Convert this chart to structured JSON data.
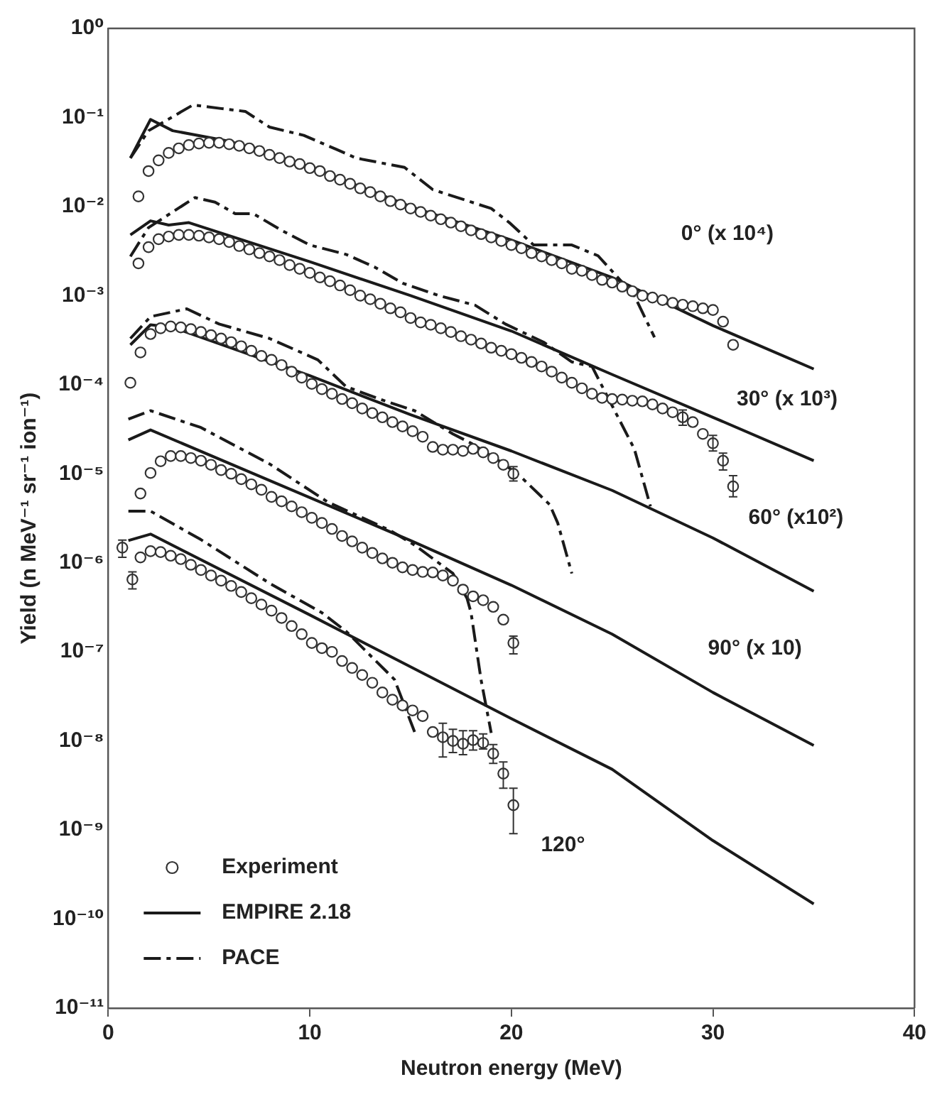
{
  "chart_data": {
    "type": "line",
    "xlabel": "Neutron energy (MeV)",
    "ylabel": "Yield (n MeV⁻¹ sr⁻¹ ion⁻¹)",
    "log": "y",
    "grid": false,
    "legend": "bottom left",
    "xlim": [
      0,
      40
    ],
    "xticks": [
      0,
      10,
      20,
      30,
      40
    ],
    "ylim": [
      1e-11,
      1
    ],
    "yticks": [
      {
        "value": 1,
        "label": "10⁰"
      },
      {
        "value": 0.1,
        "label": "10⁻¹"
      },
      {
        "value": 0.01,
        "label": "10⁻²"
      },
      {
        "value": 0.001,
        "label": "10⁻³"
      },
      {
        "value": 0.0001,
        "label": "10⁻⁴"
      },
      {
        "value": 1e-05,
        "label": "10⁻⁵"
      },
      {
        "value": 1e-06,
        "label": "10⁻⁶"
      },
      {
        "value": 1e-07,
        "label": "10⁻⁷"
      },
      {
        "value": 1e-08,
        "label": "10⁻⁸"
      },
      {
        "value": 1e-09,
        "label": "10⁻⁹"
      },
      {
        "value": 1e-10,
        "label": "10⁻¹⁰"
      },
      {
        "value": 1e-11,
        "label": "10⁻¹¹"
      }
    ],
    "annotations": [
      "0° (x 10⁴)",
      "30° (x 10³)",
      "60° (x10²)",
      "90° (x 10)",
      "120°"
    ],
    "series": [
      {
        "name": "Experiment",
        "type": "scatter",
        "color": "#333333",
        "marker": "circle",
        "x": [
          1.5,
          2,
          2.5,
          3,
          3.5,
          4,
          4.5,
          5,
          5.5,
          6,
          6.5,
          7,
          7.5,
          8,
          8.5,
          9,
          9.5,
          10,
          10.5,
          11,
          11.5,
          12,
          12.5,
          13,
          13.5,
          14,
          14.5,
          15,
          15.5,
          16,
          16.5,
          17,
          17.5,
          18,
          18.5,
          19,
          19.5,
          20,
          20.5,
          21,
          21.5,
          22,
          22.5,
          23,
          23.5,
          24,
          24.5,
          25,
          25.5,
          26,
          26.5,
          27,
          27.5,
          28,
          28.5,
          29,
          29.5,
          30,
          30.5,
          31
        ],
        "values": [
          0.013,
          0.025,
          0.033,
          0.04,
          0.045,
          0.049,
          0.051,
          0.052,
          0.052,
          0.05,
          0.048,
          0.045,
          0.042,
          0.038,
          0.035,
          0.032,
          0.03,
          0.027,
          0.025,
          0.022,
          0.02,
          0.018,
          0.016,
          0.0145,
          0.013,
          0.0115,
          0.0105,
          0.0095,
          0.0087,
          0.0079,
          0.0072,
          0.0066,
          0.006,
          0.0054,
          0.0049,
          0.0045,
          0.0041,
          0.0037,
          0.0034,
          0.003,
          0.00275,
          0.0025,
          0.0023,
          0.002,
          0.0019,
          0.0017,
          0.0015,
          0.0014,
          0.00126,
          0.00112,
          0.001,
          0.00095,
          0.00089,
          0.00083,
          0.00079,
          0.00076,
          0.00072,
          0.00069,
          0.00051,
          0.00028
        ]
      },
      {
        "name": "EMPIRE 2.18",
        "type": "line",
        "color": "#1a1a1a",
        "marker": "none",
        "line_style": "solid",
        "x": [
          1.1,
          2.1,
          3.2,
          6,
          10,
          15,
          20,
          25,
          30,
          35
        ],
        "values": [
          0.035,
          0.095,
          0.071,
          0.054,
          0.028,
          0.01,
          0.0042,
          0.0016,
          0.00046,
          0.00015
        ]
      },
      {
        "name": "PACE",
        "type": "line",
        "color": "#1a1a1a",
        "marker": "none",
        "line_style": "dashed",
        "x": [
          1.1,
          2.0,
          4.2,
          5.6,
          6.8,
          8.0,
          9.7,
          11.3,
          12.3,
          14.7,
          16.1,
          19.0,
          19.9,
          21.1,
          23.0,
          24.3,
          26.1,
          27.1
        ],
        "values": [
          0.035,
          0.071,
          0.138,
          0.126,
          0.117,
          0.078,
          0.063,
          0.044,
          0.035,
          0.0275,
          0.0155,
          0.0095,
          0.0066,
          0.0037,
          0.0037,
          0.0028,
          0.001,
          0.00034
        ]
      },
      {
        "type": "scatter",
        "color": "#333333",
        "marker": "circle",
        "x": [
          1.5,
          2,
          2.5,
          3,
          3.5,
          4,
          4.5,
          5,
          5.5,
          6,
          6.5,
          7,
          7.5,
          8,
          8.5,
          9,
          9.5,
          10,
          10.5,
          11,
          11.5,
          12,
          12.5,
          13,
          13.5,
          14,
          14.5,
          15,
          15.5,
          16,
          16.5,
          17,
          17.5,
          18,
          18.5,
          19,
          19.5,
          20,
          20.5,
          21,
          21.5,
          22,
          22.5,
          23,
          23.5,
          24,
          24.5,
          25,
          25.5,
          26,
          26.5,
          27,
          27.5,
          28,
          28.5,
          29,
          29.5,
          30,
          30.5,
          31
        ],
        "values": [
          0.0023,
          0.0035,
          0.0043,
          0.0046,
          0.0048,
          0.0048,
          0.0047,
          0.0045,
          0.0043,
          0.004,
          0.0036,
          0.0033,
          0.003,
          0.00275,
          0.0025,
          0.0022,
          0.002,
          0.0018,
          0.0016,
          0.00145,
          0.0013,
          0.00115,
          0.001,
          0.00091,
          0.00081,
          0.00072,
          0.00065,
          0.00056,
          0.0005,
          0.00047,
          0.00043,
          0.00039,
          0.00035,
          0.00032,
          0.00029,
          0.00026,
          0.00024,
          0.00022,
          0.0002,
          0.00018,
          0.00016,
          0.00014,
          0.00012,
          0.000105,
          9.1e-05,
          7.9e-05,
          7.1e-05,
          6.9e-05,
          6.8e-05,
          6.6e-05,
          6.5e-05,
          6e-05,
          5.4e-05,
          4.9e-05,
          4.3e-05,
          3.8e-05,
          2.8e-05,
          2.2e-05,
          1.4e-05,
          7.2e-06
        ],
        "errors": [
          null,
          null,
          null,
          null,
          null,
          null,
          null,
          null,
          null,
          null,
          null,
          null,
          null,
          null,
          null,
          null,
          null,
          null,
          null,
          null,
          null,
          null,
          null,
          null,
          null,
          null,
          null,
          null,
          null,
          null,
          null,
          null,
          null,
          null,
          null,
          null,
          null,
          null,
          null,
          null,
          null,
          null,
          null,
          null,
          null,
          null,
          null,
          null,
          null,
          null,
          null,
          null,
          null,
          null,
          [
            3.5e-05,
            5.2e-05
          ],
          null,
          null,
          [
            1.8e-05,
            2.7e-05
          ],
          [
            1.1e-05,
            1.7e-05
          ],
          [
            5.5e-06,
            9.5e-06
          ]
        ]
      },
      {
        "type": "line",
        "color": "#1a1a1a",
        "marker": "none",
        "line_style": "solid",
        "x": [
          1.1,
          2.1,
          3.0,
          4.0,
          10,
          15,
          20,
          25,
          30,
          35
        ],
        "values": [
          0.0048,
          0.0069,
          0.0062,
          0.0066,
          0.0024,
          0.001,
          0.0004,
          0.00013,
          4.3e-05,
          1.4e-05
        ]
      },
      {
        "type": "line",
        "color": "#1a1a1a",
        "marker": "none",
        "line_style": "dashed",
        "x": [
          1.1,
          2.0,
          4.3,
          5.3,
          6.3,
          7.2,
          8.6,
          10.0,
          11.8,
          13.2,
          14.6,
          16.4,
          18.2,
          19.7,
          21.6,
          23.0,
          24.0,
          25.0,
          26.1,
          26.9
        ],
        "values": [
          0.00275,
          0.0058,
          0.0126,
          0.0112,
          0.0083,
          0.0083,
          0.0054,
          0.0037,
          0.0029,
          0.0021,
          0.00138,
          0.001,
          0.00078,
          0.00048,
          0.0003,
          0.00018,
          0.00016,
          5.8e-05,
          1.9e-05,
          4.3e-06
        ]
      },
      {
        "type": "scatter",
        "color": "#333333",
        "marker": "circle",
        "x": [
          1.1,
          1.6,
          2.1,
          2.6,
          3.1,
          3.6,
          4.1,
          4.6,
          5.1,
          5.6,
          6.1,
          6.6,
          7.1,
          7.6,
          8.1,
          8.6,
          9.1,
          9.6,
          10.1,
          10.6,
          11.1,
          11.6,
          12.1,
          12.6,
          13.1,
          13.6,
          14.1,
          14.6,
          15.1,
          15.6,
          16.1,
          16.6,
          17.1,
          17.6,
          18.1,
          18.6,
          19.1,
          19.6,
          20.1
        ],
        "values": [
          0.000105,
          0.00023,
          0.00037,
          0.00043,
          0.00045,
          0.00044,
          0.00042,
          0.00039,
          0.00036,
          0.00033,
          0.0003,
          0.00027,
          0.00024,
          0.00021,
          0.00019,
          0.000166,
          0.00014,
          0.00012,
          0.000102,
          8.9e-05,
          7.9e-05,
          6.9e-05,
          6.2e-05,
          5.4e-05,
          4.8e-05,
          4.3e-05,
          3.8e-05,
          3.4e-05,
          3e-05,
          2.6e-05,
          2e-05,
          1.86e-05,
          1.86e-05,
          1.8e-05,
          1.9e-05,
          1.74e-05,
          1.5e-05,
          1.26e-05,
          1e-05
        ],
        "errors": [
          null,
          null,
          null,
          null,
          null,
          null,
          null,
          null,
          null,
          null,
          null,
          null,
          null,
          null,
          null,
          null,
          null,
          null,
          null,
          null,
          null,
          null,
          null,
          null,
          null,
          null,
          null,
          null,
          null,
          null,
          null,
          null,
          null,
          null,
          null,
          null,
          null,
          null,
          [
            8.3e-06,
            1.2e-05
          ]
        ]
      },
      {
        "type": "line",
        "color": "#1a1a1a",
        "marker": "none",
        "line_style": "solid",
        "x": [
          1.1,
          2.1,
          3.2,
          10,
          15,
          20,
          25,
          30,
          35
        ],
        "values": [
          0.00028,
          0.00047,
          0.00044,
          0.000126,
          4.6e-05,
          1.8e-05,
          6.5e-06,
          1.9e-06,
          4.8e-07
        ]
      },
      {
        "type": "line",
        "color": "#1a1a1a",
        "marker": "none",
        "line_style": "dashed",
        "x": [
          1.1,
          2.1,
          3.9,
          5.5,
          8.0,
          10.4,
          11.8,
          13.7,
          15.2,
          17.1,
          18.0,
          19.6,
          20.5,
          21.9,
          22.3,
          23.0
        ],
        "values": [
          0.00033,
          0.00058,
          0.00071,
          0.00048,
          0.00033,
          0.00019,
          9.5e-05,
          6.6e-05,
          5.1e-05,
          2.8e-05,
          2.2e-05,
          1.3e-05,
          9.1e-06,
          4.5e-06,
          2.8e-06,
          7.6e-07
        ]
      },
      {
        "type": "scatter",
        "color": "#333333",
        "marker": "circle",
        "x": [
          1.6,
          2.1,
          2.6,
          3.1,
          3.6,
          4.1,
          4.6,
          5.1,
          5.6,
          6.1,
          6.6,
          7.1,
          7.6,
          8.1,
          8.6,
          9.1,
          9.6,
          10.1,
          10.6,
          11.1,
          11.6,
          12.1,
          12.6,
          13.1,
          13.6,
          14.1,
          14.6,
          15.1,
          15.6,
          16.1,
          16.6,
          17.1,
          17.6,
          18.1,
          18.6,
          19.1,
          19.6,
          20.1
        ],
        "values": [
          6e-06,
          1.02e-05,
          1.38e-05,
          1.58e-05,
          1.58e-05,
          1.5e-05,
          1.4e-05,
          1.26e-05,
          1.1e-05,
          1e-05,
          8.7e-06,
          7.6e-06,
          6.6e-06,
          5.5e-06,
          4.9e-06,
          4.3e-06,
          3.7e-06,
          3.2e-06,
          2.8e-06,
          2.4e-06,
          2e-06,
          1.74e-06,
          1.48e-06,
          1.29e-06,
          1.12e-06,
          1e-06,
          8.9e-07,
          8.3e-07,
          7.9e-07,
          7.8e-07,
          7.2e-07,
          6.3e-07,
          5e-07,
          4.2e-07,
          3.8e-07,
          3.2e-07,
          2.3e-07,
          1.26e-07
        ],
        "errors": [
          null,
          null,
          null,
          null,
          null,
          null,
          null,
          null,
          null,
          null,
          null,
          null,
          null,
          null,
          null,
          null,
          null,
          null,
          null,
          null,
          null,
          null,
          null,
          null,
          null,
          null,
          null,
          null,
          null,
          null,
          null,
          null,
          null,
          null,
          null,
          null,
          null,
          [
            9.5e-08,
            1.5e-07
          ]
        ]
      },
      {
        "type": "line",
        "color": "#1a1a1a",
        "marker": "none",
        "line_style": "solid",
        "x": [
          1.0,
          2.1,
          10,
          15,
          20,
          25,
          30,
          35
        ],
        "values": [
          2.4e-05,
          3.1e-05,
          5.4e-06,
          1.78e-06,
          5.6e-07,
          1.58e-07,
          3.5e-08,
          8.9e-09
        ]
      },
      {
        "type": "line",
        "color": "#1a1a1a",
        "marker": "none",
        "line_style": "dashed",
        "x": [
          1.0,
          2.1,
          4.6,
          8.0,
          10.9,
          14.0,
          15.2,
          17.1,
          17.8,
          18.0,
          18.5,
          19.0
        ],
        "values": [
          4.1e-05,
          5.1e-05,
          3.3e-05,
          1.29e-05,
          4.8e-06,
          2.3e-06,
          1.58e-06,
          7.6e-07,
          4e-07,
          2.75e-07,
          4.8e-08,
          1.23e-08
        ]
      },
      {
        "type": "scatter",
        "color": "#333333",
        "marker": "circle",
        "x": [
          0.7,
          1.2,
          1.6,
          2.1,
          2.6,
          3.1,
          3.6,
          4.1,
          4.6,
          5.1,
          5.6,
          6.1,
          6.6,
          7.1,
          7.6,
          8.1,
          8.6,
          9.1,
          9.6,
          10.1,
          10.6,
          11.1,
          11.6,
          12.1,
          12.6,
          13.1,
          13.6,
          14.1,
          14.6,
          15.1,
          15.6,
          16.1,
          16.6,
          17.1,
          17.6,
          18.1,
          18.6,
          19.1,
          19.6,
          20.1
        ],
        "values": [
          1.48e-06,
          6.5e-07,
          1.15e-06,
          1.35e-06,
          1.32e-06,
          1.2e-06,
          1.1e-06,
          9.5e-07,
          8.3e-07,
          7.2e-07,
          6.3e-07,
          5.5e-07,
          4.7e-07,
          4e-07,
          3.4e-07,
          2.9e-07,
          2.4e-07,
          1.95e-07,
          1.58e-07,
          1.26e-07,
          1.1e-07,
          1e-07,
          7.9e-08,
          6.6e-08,
          5.5e-08,
          4.5e-08,
          3.5e-08,
          2.9e-08,
          2.5e-08,
          2.2e-08,
          1.9e-08,
          1.26e-08,
          1.1e-08,
          1e-08,
          9.3e-09,
          1.02e-08,
          9.5e-09,
          7.2e-09,
          4.3e-09,
          1.9e-09
        ],
        "errors": [
          [
            1.15e-06,
            1.8e-06
          ],
          [
            5.1e-07,
            7.9e-07
          ],
          null,
          null,
          null,
          null,
          null,
          null,
          null,
          null,
          null,
          null,
          null,
          null,
          null,
          null,
          null,
          null,
          null,
          null,
          null,
          null,
          null,
          null,
          null,
          null,
          null,
          null,
          null,
          null,
          null,
          null,
          [
            6.6e-09,
            1.58e-08
          ],
          [
            7.4e-09,
            1.35e-08
          ],
          [
            7e-09,
            1.3e-08
          ],
          [
            7.9e-09,
            1.3e-08
          ],
          [
            8.1e-09,
            1.2e-08
          ],
          [
            5.6e-09,
            9.1e-09
          ],
          [
            2.95e-09,
            5.8e-09
          ],
          [
            9.1e-10,
            2.95e-09
          ]
        ]
      },
      {
        "type": "line",
        "color": "#1a1a1a",
        "marker": "none",
        "line_style": "solid",
        "x": [
          1.0,
          2.1,
          10,
          15,
          20,
          25,
          30,
          35
        ],
        "values": [
          1.78e-06,
          2.1e-06,
          2.6e-07,
          6.8e-08,
          1.78e-08,
          4.8e-09,
          7.6e-10,
          1.48e-10
        ]
      },
      {
        "type": "line",
        "color": "#1a1a1a",
        "marker": "none",
        "line_style": "dashed",
        "x": [
          1.0,
          2.1,
          4.6,
          8.0,
          10.6,
          11.8,
          14.2,
          15.2
        ],
        "values": [
          3.8e-06,
          3.8e-06,
          1.82e-06,
          5.9e-07,
          2.75e-07,
          1.7e-07,
          4.9e-08,
          1.26e-08
        ]
      }
    ]
  }
}
